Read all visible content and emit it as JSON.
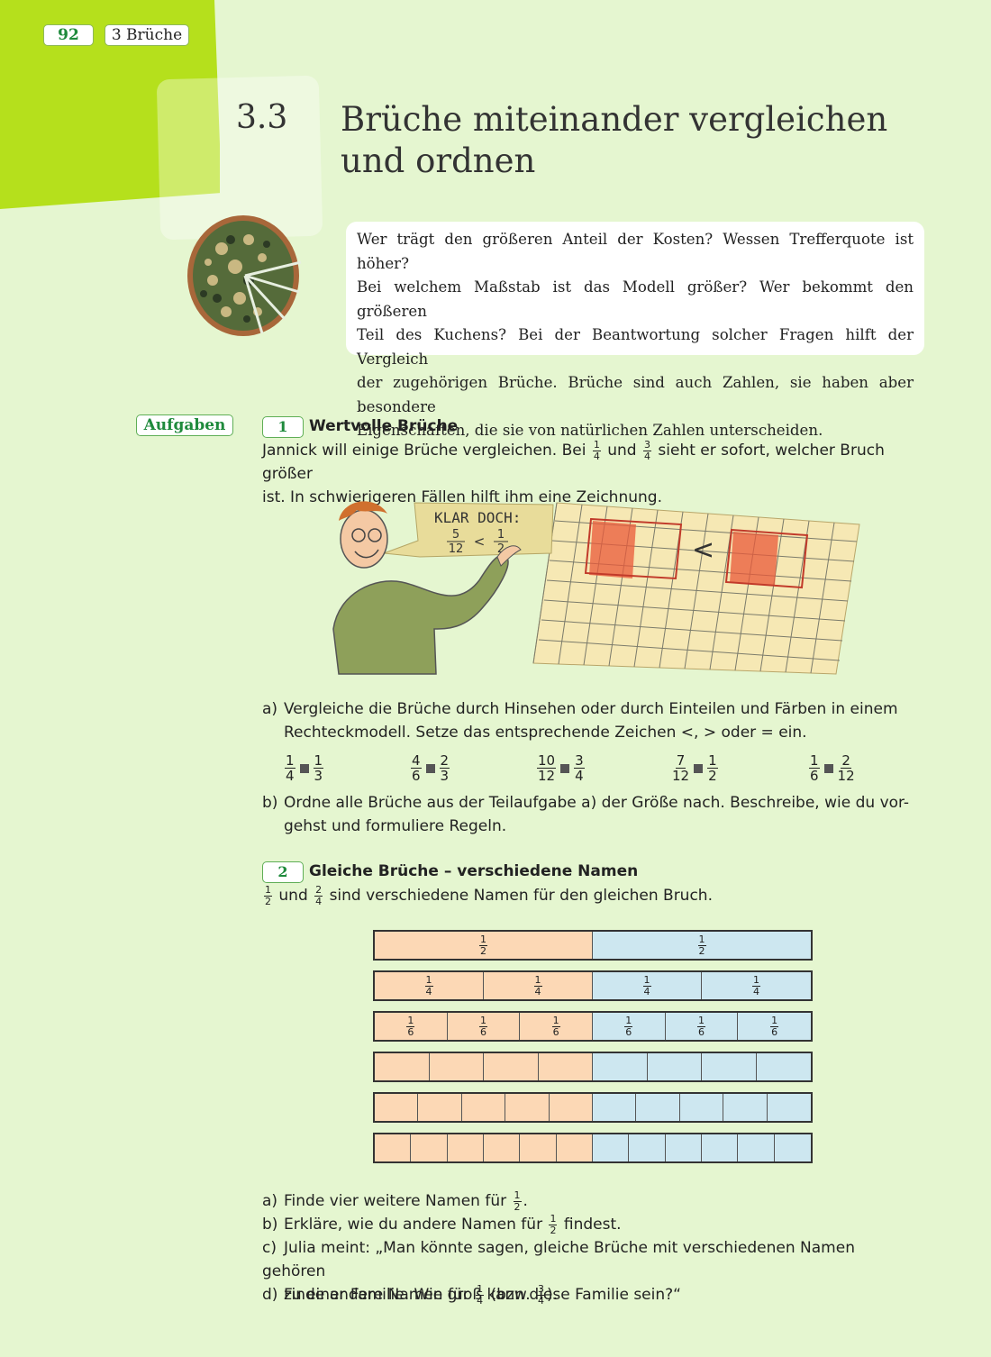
{
  "header": {
    "page_number": "92",
    "chapter": "3 Brüche"
  },
  "section": {
    "number": "3.3",
    "title_line1": "Brüche miteinander vergleichen",
    "title_line2": "und ordnen"
  },
  "intro": {
    "lines": [
      "Wer trägt den größeren Anteil der Kosten? Wessen Trefferquote ist höher?",
      "Bei welchem Maßstab ist das Modell größer? Wer bekommt den größeren",
      "Teil des Kuchens? Bei der Beantwortung solcher Fragen hilft der Vergleich",
      "der zugehörigen Brüche. Brüche sind auch Zahlen, sie haben aber besondere",
      "Eigenschaften, die sie von natürlichen Zahlen unterscheiden."
    ]
  },
  "aufgaben_label": "Aufgaben",
  "task1": {
    "number": "1",
    "title": "Wertvolle Brüche",
    "text_part1": "Jannick will einige Brüche vergleichen. Bei",
    "text_and": "und",
    "text_part2": "sieht er sofort, welcher Bruch größer",
    "text_line2": "ist. In schwierigeren Fällen hilft ihm eine Zeichnung.",
    "frac_a": {
      "n": "1",
      "d": "4"
    },
    "frac_b": {
      "n": "3",
      "d": "4"
    },
    "speech": {
      "line1": "KLAR DOCH:",
      "frac_left": {
        "n": "5",
        "d": "12"
      },
      "sign": "<",
      "frac_right": {
        "n": "1",
        "d": "2"
      }
    },
    "grid_sign": "<",
    "a_label": "a)",
    "a_line1": "Vergleiche die Brüche durch Hinsehen oder durch Einteilen und Färben in einem",
    "a_line2": "Rechteckmodell. Setze das entsprechende Zeichen <, > oder = ein.",
    "comparisons": [
      {
        "l": {
          "n": "1",
          "d": "4"
        },
        "r": {
          "n": "1",
          "d": "3"
        }
      },
      {
        "l": {
          "n": "4",
          "d": "6"
        },
        "r": {
          "n": "2",
          "d": "3"
        }
      },
      {
        "l": {
          "n": "10",
          "d": "12"
        },
        "r": {
          "n": "3",
          "d": "4"
        }
      },
      {
        "l": {
          "n": "7",
          "d": "12"
        },
        "r": {
          "n": "1",
          "d": "2"
        }
      },
      {
        "l": {
          "n": "1",
          "d": "6"
        },
        "r": {
          "n": "2",
          "d": "12"
        }
      }
    ],
    "b_label": "b)",
    "b_line1": "Ordne alle Brüche aus der Teilaufgabe a) der Größe nach. Beschreibe, wie du vor-",
    "b_line2": "gehst und formuliere Regeln."
  },
  "task2": {
    "number": "2",
    "title": "Gleiche Brüche – verschiedene Namen",
    "intro_and": "und",
    "intro_rest": "sind verschiedene Namen für den gleichen Bruch.",
    "frac_a": {
      "n": "1",
      "d": "2"
    },
    "frac_b": {
      "n": "2",
      "d": "4"
    },
    "bars": [
      {
        "parts": 2,
        "label_n": "1",
        "label_d": "2",
        "labeled": true
      },
      {
        "parts": 4,
        "label_n": "1",
        "label_d": "4",
        "labeled": true
      },
      {
        "parts": 6,
        "label_n": "1",
        "label_d": "6",
        "labeled": true
      },
      {
        "parts": 8,
        "labeled": false
      },
      {
        "parts": 10,
        "labeled": false
      },
      {
        "parts": 12,
        "labeled": false
      }
    ],
    "colors": {
      "left": "#fcd8b5",
      "right": "#cde7f0"
    },
    "a_label": "a)",
    "a_text": "Finde vier weitere Namen für",
    "a_frac": {
      "n": "1",
      "d": "2"
    },
    "a_end": ".",
    "b_label": "b)",
    "b_text": "Erkläre, wie du andere Namen für",
    "b_frac": {
      "n": "1",
      "d": "2"
    },
    "b_end": "findest.",
    "c_label": "c)",
    "c_line1": "Julia meint: „Man könnte sagen, gleiche Brüche mit verschiedenen Namen gehören",
    "c_line2": "zu einer Familie. Wie groß kann diese Familie sein?“",
    "d_label": "d)",
    "d_text": "Finde andere Namen für",
    "d_frac": {
      "n": "1",
      "d": "4"
    },
    "d_mid": "(bzw.",
    "d_frac2": {
      "n": "3",
      "d": "4"
    },
    "d_end": ")."
  }
}
